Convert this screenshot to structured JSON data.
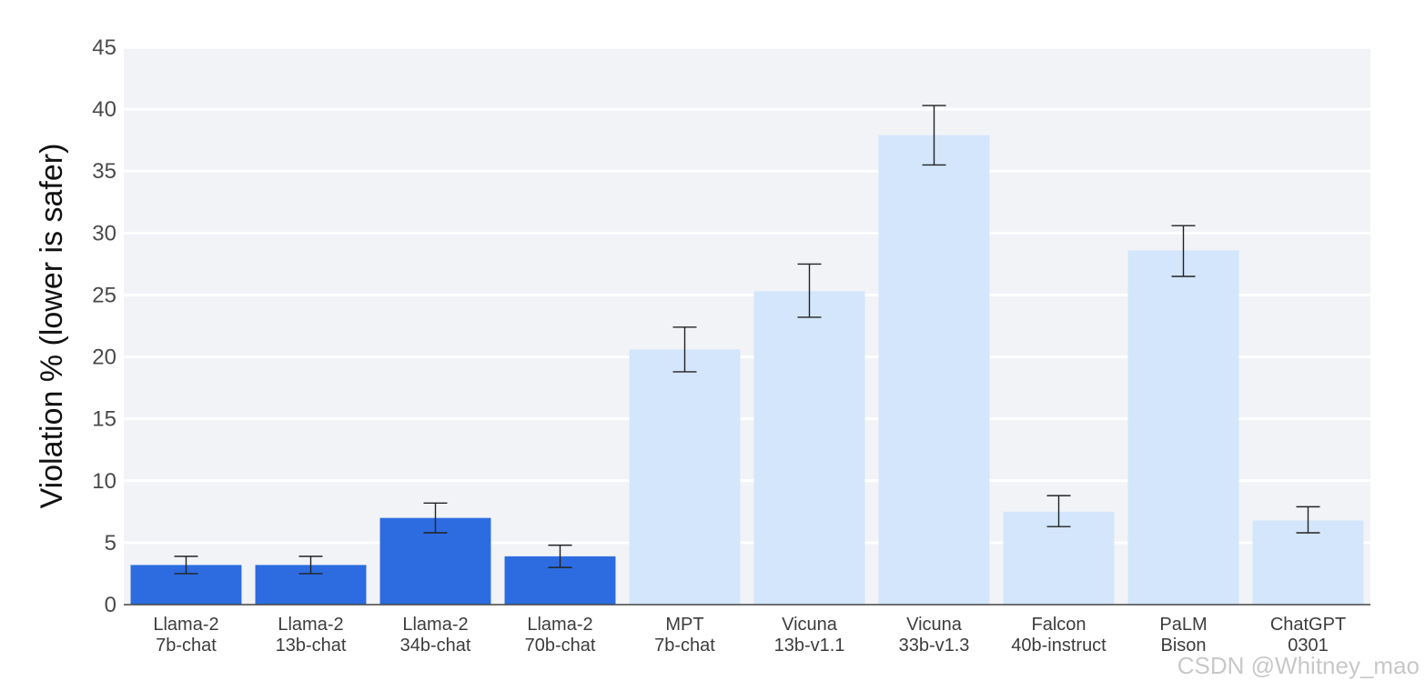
{
  "watermark": "CSDN @Whitney_mao",
  "chart_data": {
    "type": "bar",
    "ylabel": "Violation % (lower is safer)",
    "xlabel": "",
    "ylim": [
      0,
      45
    ],
    "yticks": [
      0,
      5,
      10,
      15,
      20,
      25,
      30,
      35,
      40,
      45
    ],
    "grid": true,
    "categories": [
      [
        "Llama-2",
        "7b-chat"
      ],
      [
        "Llama-2",
        "13b-chat"
      ],
      [
        "Llama-2",
        "34b-chat"
      ],
      [
        "Llama-2",
        "70b-chat"
      ],
      [
        "MPT",
        "7b-chat"
      ],
      [
        "Vicuna",
        "13b-v1.1"
      ],
      [
        "Vicuna",
        "33b-v1.3"
      ],
      [
        "Falcon",
        "40b-instruct"
      ],
      [
        "PaLM",
        "Bison"
      ],
      [
        "ChatGPT",
        "0301"
      ]
    ],
    "values": [
      3.2,
      3.2,
      7.0,
      3.9,
      20.6,
      25.3,
      37.9,
      7.5,
      28.6,
      6.8
    ],
    "error_low": [
      2.5,
      2.5,
      5.8,
      3.0,
      18.8,
      23.2,
      35.5,
      6.3,
      26.5,
      5.8
    ],
    "error_high": [
      3.9,
      3.9,
      8.2,
      4.8,
      22.4,
      27.5,
      40.3,
      8.8,
      30.6,
      7.9
    ],
    "colors": [
      "#2d6ce0",
      "#2d6ce0",
      "#2d6ce0",
      "#2d6ce0",
      "#d3e6fb",
      "#d3e6fb",
      "#d3e6fb",
      "#d3e6fb",
      "#d3e6fb",
      "#d3e6fb"
    ],
    "background": "#f1f3f7"
  }
}
